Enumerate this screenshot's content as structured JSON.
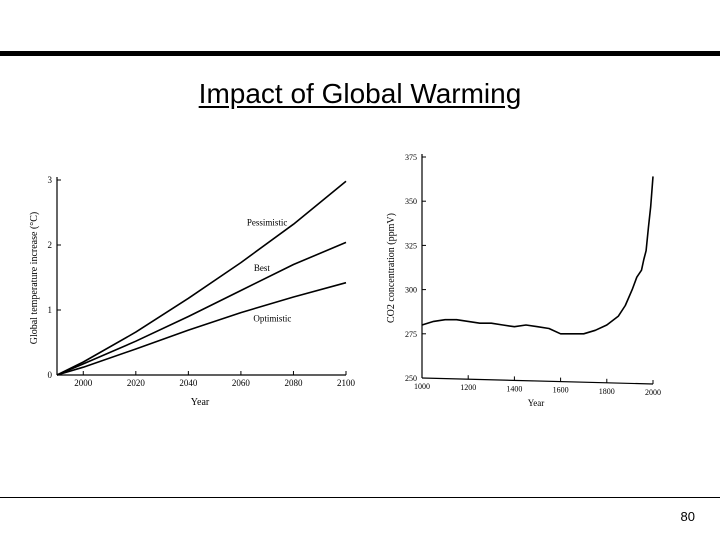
{
  "slide": {
    "title": "Impact of Global Warming",
    "page_number": "80"
  },
  "chart_data": [
    {
      "type": "line",
      "title": "",
      "xlabel": "Year",
      "ylabel": "Global temperature increase (°C)",
      "xlim": [
        1990,
        2100
      ],
      "ylim": [
        0,
        3
      ],
      "x_ticks": [
        "2000",
        "2020",
        "2040",
        "2060",
        "2080",
        "2100"
      ],
      "y_ticks": [
        "0",
        "1",
        "2",
        "3"
      ],
      "grid": false,
      "series": [
        {
          "name": "Pessimistic",
          "x": [
            1990,
            2000,
            2020,
            2040,
            2060,
            2080,
            2100
          ],
          "values": [
            0,
            0.2,
            0.66,
            1.18,
            1.73,
            2.32,
            2.98
          ]
        },
        {
          "name": "Best",
          "x": [
            1990,
            2000,
            2020,
            2040,
            2060,
            2080,
            2100
          ],
          "values": [
            0,
            0.17,
            0.52,
            0.9,
            1.3,
            1.7,
            2.04
          ]
        },
        {
          "name": "Optimistic",
          "x": [
            1990,
            2000,
            2020,
            2040,
            2060,
            2080,
            2100
          ],
          "values": [
            0,
            0.12,
            0.4,
            0.69,
            0.96,
            1.2,
            1.42
          ]
        }
      ]
    },
    {
      "type": "line",
      "title": "",
      "xlabel": "Year",
      "ylabel": "CO2 concentration (ppmV)",
      "xlim": [
        1000,
        2000
      ],
      "ylim": [
        250,
        375
      ],
      "x_ticks": [
        "1000",
        "1200",
        "1400",
        "1600",
        "1800",
        "2000"
      ],
      "y_ticks": [
        "250",
        "275",
        "300",
        "325",
        "350",
        "375"
      ],
      "grid": false,
      "series": [
        {
          "name": "",
          "x": [
            1000,
            1050,
            1100,
            1150,
            1200,
            1250,
            1300,
            1350,
            1400,
            1450,
            1500,
            1550,
            1600,
            1650,
            1700,
            1750,
            1800,
            1850,
            1880,
            1910,
            1930,
            1950,
            1960,
            1970,
            1980,
            1990,
            2000
          ],
          "values": [
            280,
            282,
            283,
            283,
            282,
            281,
            281,
            280,
            279,
            280,
            279,
            278,
            275,
            275,
            275,
            277,
            280,
            285,
            291,
            300,
            307,
            311,
            317,
            322,
            335,
            347,
            364
          ]
        }
      ]
    }
  ]
}
